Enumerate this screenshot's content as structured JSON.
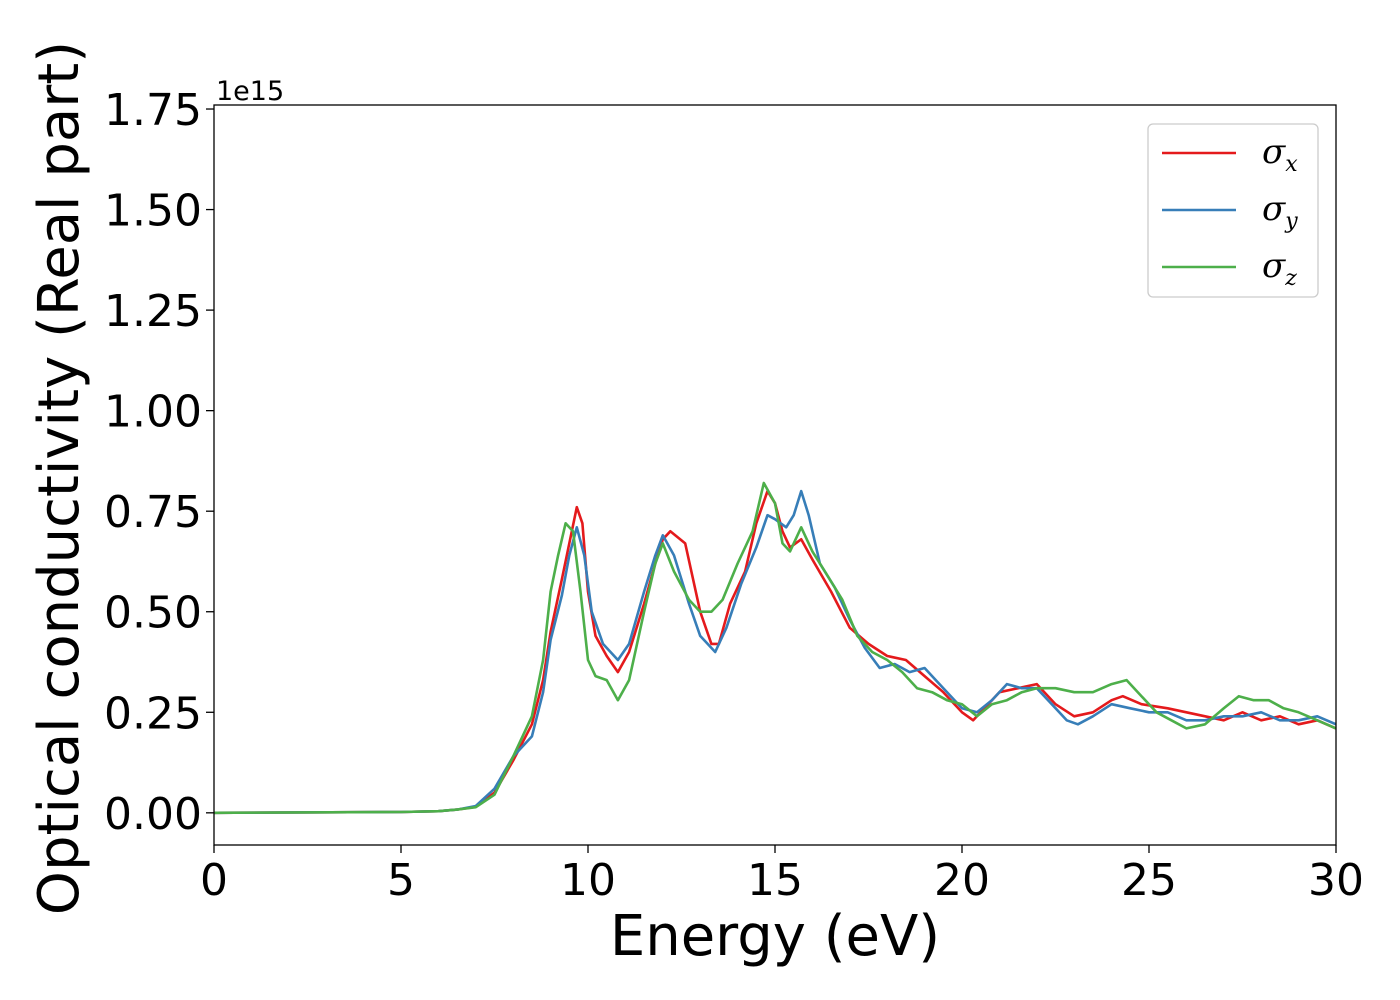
{
  "chart_data": {
    "type": "line",
    "xlabel": "Energy (eV)",
    "ylabel": "Optical conductivity (Real part)",
    "y_offset_label": "1e15",
    "xlim": [
      0,
      30
    ],
    "ylim": [
      -0.08,
      1.76
    ],
    "x_ticks": [
      0,
      5,
      10,
      15,
      20,
      25,
      30
    ],
    "x_tick_labels": [
      "0",
      "5",
      "10",
      "15",
      "20",
      "25",
      "30"
    ],
    "y_ticks": [
      0.0,
      0.25,
      0.5,
      0.75,
      1.0,
      1.25,
      1.5,
      1.75
    ],
    "y_tick_labels": [
      "0.00",
      "0.25",
      "0.50",
      "0.75",
      "1.00",
      "1.25",
      "1.50",
      "1.75"
    ],
    "grid": false,
    "legend_position": "top-right",
    "series": [
      {
        "name": "σx",
        "symbol": "σ",
        "subscript": "x",
        "color": "#e41a1c",
        "points": [
          [
            0,
            0
          ],
          [
            5,
            0.002
          ],
          [
            6,
            0.004
          ],
          [
            6.5,
            0.008
          ],
          [
            7,
            0.015
          ],
          [
            7.5,
            0.05
          ],
          [
            8,
            0.13
          ],
          [
            8.5,
            0.22
          ],
          [
            8.8,
            0.33
          ],
          [
            9,
            0.45
          ],
          [
            9.3,
            0.58
          ],
          [
            9.5,
            0.67
          ],
          [
            9.7,
            0.76
          ],
          [
            9.85,
            0.72
          ],
          [
            10,
            0.55
          ],
          [
            10.2,
            0.44
          ],
          [
            10.5,
            0.39
          ],
          [
            10.8,
            0.35
          ],
          [
            11.1,
            0.4
          ],
          [
            11.5,
            0.52
          ],
          [
            11.8,
            0.62
          ],
          [
            12,
            0.68
          ],
          [
            12.2,
            0.7
          ],
          [
            12.6,
            0.67
          ],
          [
            13,
            0.5
          ],
          [
            13.3,
            0.42
          ],
          [
            13.5,
            0.42
          ],
          [
            13.8,
            0.52
          ],
          [
            14.2,
            0.6
          ],
          [
            14.5,
            0.72
          ],
          [
            14.8,
            0.8
          ],
          [
            15,
            0.77
          ],
          [
            15.2,
            0.7
          ],
          [
            15.4,
            0.66
          ],
          [
            15.7,
            0.68
          ],
          [
            16,
            0.63
          ],
          [
            16.5,
            0.55
          ],
          [
            17,
            0.46
          ],
          [
            17.5,
            0.42
          ],
          [
            18,
            0.39
          ],
          [
            18.5,
            0.38
          ],
          [
            19,
            0.34
          ],
          [
            19.5,
            0.3
          ],
          [
            20,
            0.25
          ],
          [
            20.3,
            0.23
          ],
          [
            20.6,
            0.26
          ],
          [
            21,
            0.3
          ],
          [
            21.5,
            0.31
          ],
          [
            22,
            0.32
          ],
          [
            22.5,
            0.27
          ],
          [
            23,
            0.24
          ],
          [
            23.5,
            0.25
          ],
          [
            24,
            0.28
          ],
          [
            24.3,
            0.29
          ],
          [
            24.8,
            0.27
          ],
          [
            25.5,
            0.26
          ],
          [
            26,
            0.25
          ],
          [
            26.5,
            0.24
          ],
          [
            27,
            0.23
          ],
          [
            27.5,
            0.25
          ],
          [
            28,
            0.23
          ],
          [
            28.5,
            0.24
          ],
          [
            29,
            0.22
          ],
          [
            29.5,
            0.23
          ],
          [
            30,
            0.21
          ]
        ]
      },
      {
        "name": "σy",
        "symbol": "σ",
        "subscript": "y",
        "color": "#377eb8",
        "points": [
          [
            0,
            0
          ],
          [
            5,
            0.002
          ],
          [
            6,
            0.004
          ],
          [
            6.5,
            0.008
          ],
          [
            7,
            0.017
          ],
          [
            7.5,
            0.06
          ],
          [
            8,
            0.14
          ],
          [
            8.5,
            0.19
          ],
          [
            8.8,
            0.3
          ],
          [
            9,
            0.43
          ],
          [
            9.3,
            0.54
          ],
          [
            9.5,
            0.64
          ],
          [
            9.7,
            0.71
          ],
          [
            9.9,
            0.64
          ],
          [
            10.1,
            0.5
          ],
          [
            10.4,
            0.42
          ],
          [
            10.8,
            0.38
          ],
          [
            11.1,
            0.42
          ],
          [
            11.5,
            0.55
          ],
          [
            11.8,
            0.64
          ],
          [
            12,
            0.69
          ],
          [
            12.3,
            0.64
          ],
          [
            12.7,
            0.52
          ],
          [
            13,
            0.44
          ],
          [
            13.4,
            0.4
          ],
          [
            13.7,
            0.46
          ],
          [
            14.1,
            0.57
          ],
          [
            14.5,
            0.66
          ],
          [
            14.8,
            0.74
          ],
          [
            15,
            0.73
          ],
          [
            15.3,
            0.71
          ],
          [
            15.5,
            0.74
          ],
          [
            15.7,
            0.8
          ],
          [
            15.9,
            0.74
          ],
          [
            16.2,
            0.62
          ],
          [
            16.6,
            0.56
          ],
          [
            17,
            0.48
          ],
          [
            17.4,
            0.41
          ],
          [
            17.8,
            0.36
          ],
          [
            18.2,
            0.37
          ],
          [
            18.6,
            0.35
          ],
          [
            19,
            0.36
          ],
          [
            19.3,
            0.33
          ],
          [
            19.7,
            0.29
          ],
          [
            20,
            0.26
          ],
          [
            20.4,
            0.25
          ],
          [
            20.8,
            0.28
          ],
          [
            21.2,
            0.32
          ],
          [
            21.6,
            0.31
          ],
          [
            22,
            0.31
          ],
          [
            22.4,
            0.27
          ],
          [
            22.8,
            0.23
          ],
          [
            23.1,
            0.22
          ],
          [
            23.5,
            0.24
          ],
          [
            24,
            0.27
          ],
          [
            24.5,
            0.26
          ],
          [
            25,
            0.25
          ],
          [
            25.5,
            0.25
          ],
          [
            26,
            0.23
          ],
          [
            26.5,
            0.23
          ],
          [
            27,
            0.24
          ],
          [
            27.5,
            0.24
          ],
          [
            28,
            0.25
          ],
          [
            28.5,
            0.23
          ],
          [
            29,
            0.23
          ],
          [
            29.5,
            0.24
          ],
          [
            30,
            0.22
          ]
        ]
      },
      {
        "name": "σz",
        "symbol": "σ",
        "subscript": "z",
        "color": "#4daf4a",
        "points": [
          [
            0,
            0
          ],
          [
            5,
            0.002
          ],
          [
            6,
            0.004
          ],
          [
            6.5,
            0.008
          ],
          [
            7,
            0.014
          ],
          [
            7.5,
            0.045
          ],
          [
            8,
            0.14
          ],
          [
            8.5,
            0.24
          ],
          [
            8.8,
            0.38
          ],
          [
            9,
            0.55
          ],
          [
            9.2,
            0.64
          ],
          [
            9.4,
            0.72
          ],
          [
            9.6,
            0.7
          ],
          [
            9.8,
            0.55
          ],
          [
            10,
            0.38
          ],
          [
            10.2,
            0.34
          ],
          [
            10.5,
            0.33
          ],
          [
            10.8,
            0.28
          ],
          [
            11.1,
            0.33
          ],
          [
            11.5,
            0.5
          ],
          [
            11.8,
            0.62
          ],
          [
            12,
            0.67
          ],
          [
            12.3,
            0.6
          ],
          [
            12.7,
            0.53
          ],
          [
            13,
            0.5
          ],
          [
            13.3,
            0.5
          ],
          [
            13.6,
            0.53
          ],
          [
            14,
            0.62
          ],
          [
            14.4,
            0.7
          ],
          [
            14.7,
            0.82
          ],
          [
            15,
            0.77
          ],
          [
            15.2,
            0.67
          ],
          [
            15.4,
            0.65
          ],
          [
            15.7,
            0.71
          ],
          [
            16,
            0.65
          ],
          [
            16.4,
            0.59
          ],
          [
            16.8,
            0.53
          ],
          [
            17.2,
            0.44
          ],
          [
            17.6,
            0.4
          ],
          [
            18,
            0.38
          ],
          [
            18.4,
            0.35
          ],
          [
            18.8,
            0.31
          ],
          [
            19.2,
            0.3
          ],
          [
            19.6,
            0.28
          ],
          [
            20,
            0.27
          ],
          [
            20.4,
            0.24
          ],
          [
            20.8,
            0.27
          ],
          [
            21.2,
            0.28
          ],
          [
            21.6,
            0.3
          ],
          [
            22,
            0.31
          ],
          [
            22.5,
            0.31
          ],
          [
            23,
            0.3
          ],
          [
            23.5,
            0.3
          ],
          [
            24,
            0.32
          ],
          [
            24.4,
            0.33
          ],
          [
            24.8,
            0.29
          ],
          [
            25.2,
            0.25
          ],
          [
            25.6,
            0.23
          ],
          [
            26,
            0.21
          ],
          [
            26.5,
            0.22
          ],
          [
            27,
            0.26
          ],
          [
            27.4,
            0.29
          ],
          [
            27.8,
            0.28
          ],
          [
            28.2,
            0.28
          ],
          [
            28.6,
            0.26
          ],
          [
            29,
            0.25
          ],
          [
            29.5,
            0.23
          ],
          [
            30,
            0.21
          ]
        ]
      }
    ]
  }
}
